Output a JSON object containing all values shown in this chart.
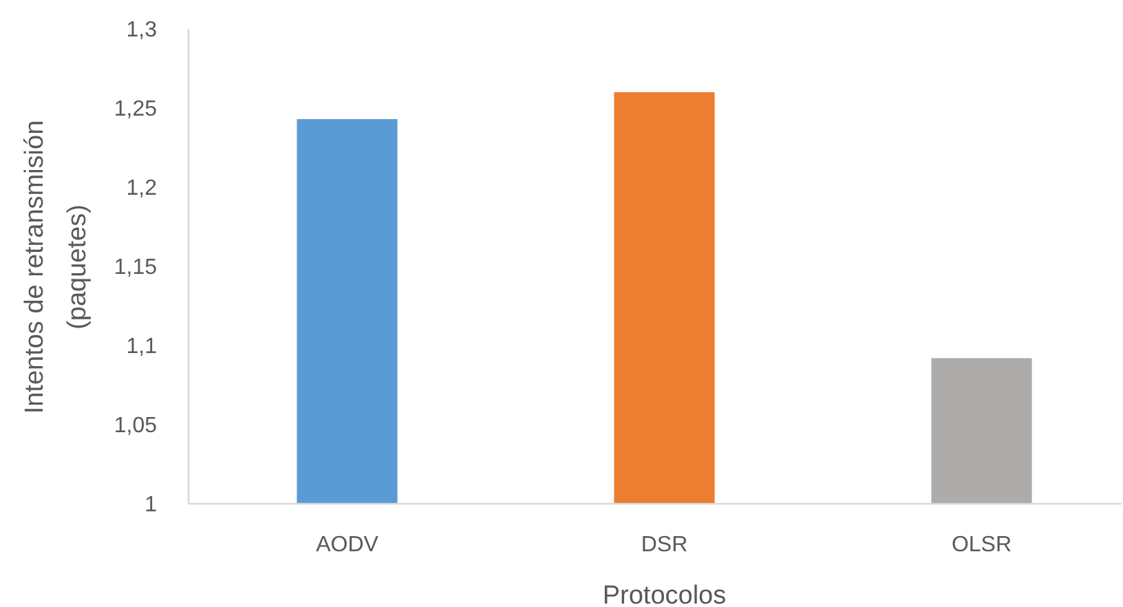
{
  "chart_data": {
    "type": "bar",
    "xlabel": "Protocolos",
    "ylabel": "Intentos de retransmisión\n(paquetes)",
    "categories": [
      "AODV",
      "DSR",
      "OLSR"
    ],
    "values": [
      1.243,
      1.26,
      1.092
    ],
    "colors": [
      "#5b9bd5",
      "#ed7d31",
      "#aeabab"
    ],
    "ylim": [
      1,
      1.3
    ],
    "yticks": [
      1,
      {
        "value": 1.05,
        "label": "1,05"
      },
      {
        "value": 1.1,
        "label": "1,1"
      },
      {
        "value": 1.15,
        "label": "1,15"
      },
      {
        "value": 1.2,
        "label": "1,2"
      },
      {
        "value": 1.25,
        "label": "1,25"
      },
      {
        "value": 1.3,
        "label": "1,3"
      }
    ]
  }
}
